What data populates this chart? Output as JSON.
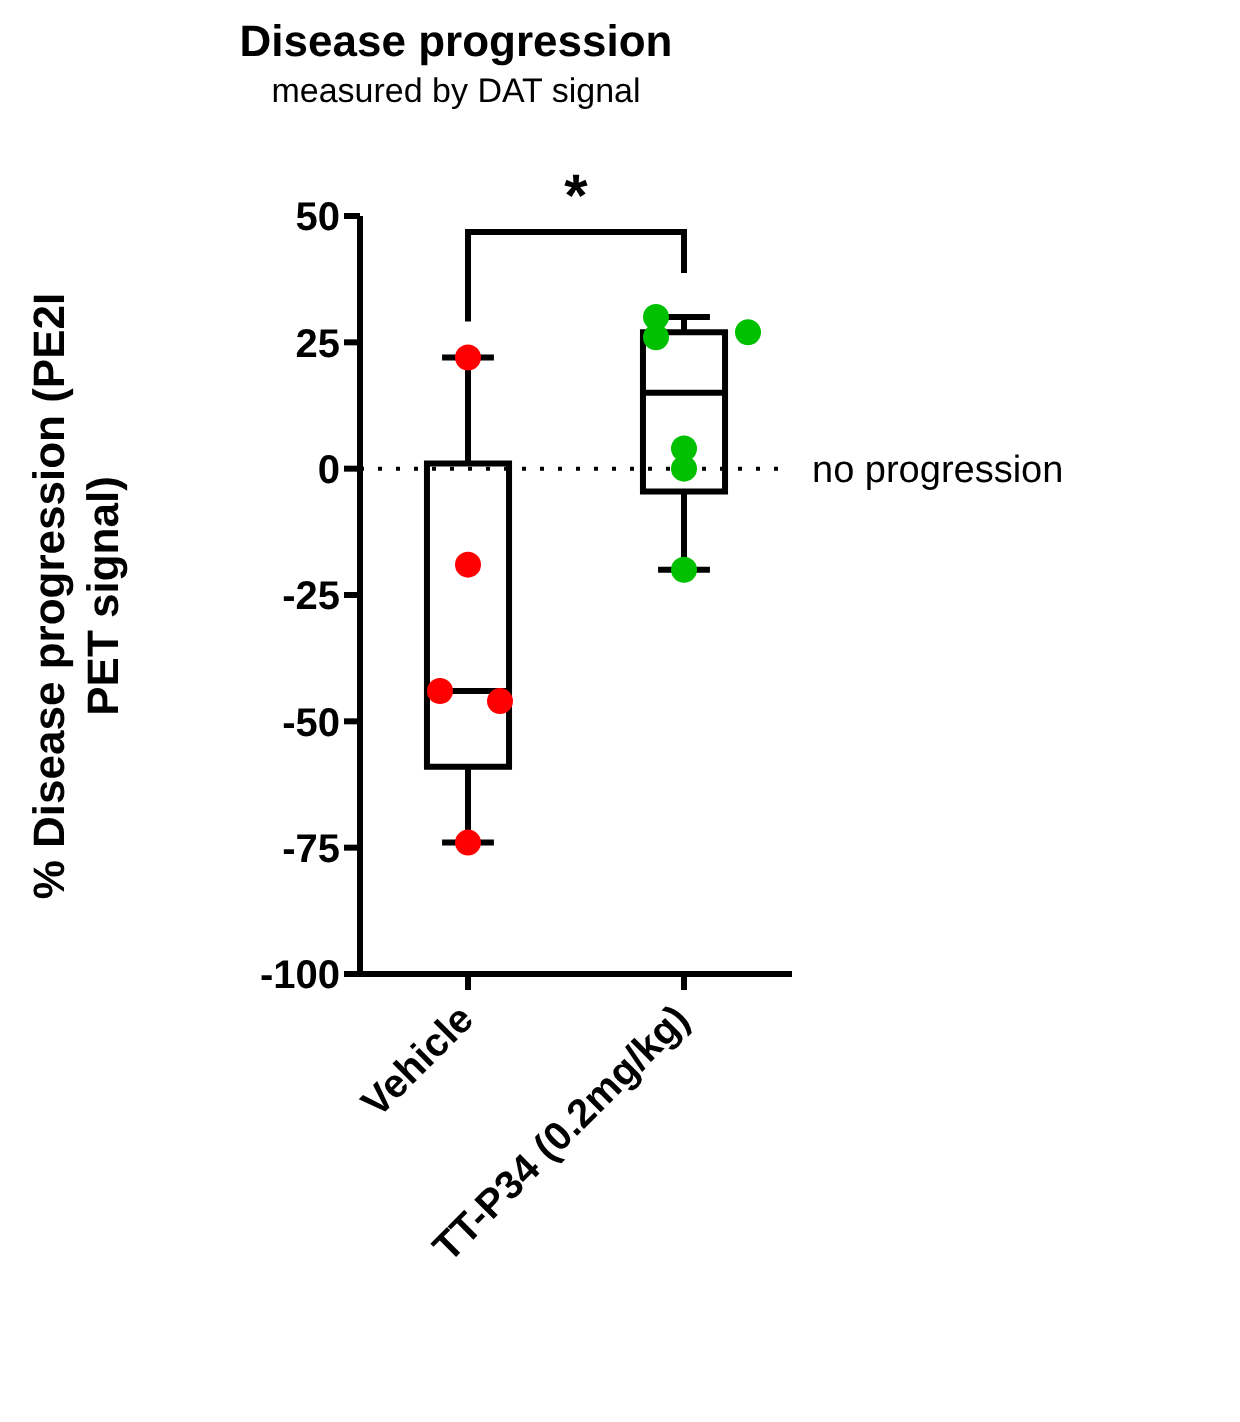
{
  "chart_data": {
    "type": "box",
    "title": "Disease progression",
    "subtitle": "measured by DAT signal",
    "ylabel": "% Disease progression (PE2I PET signal)",
    "categories": [
      "Vehicle",
      "TT-P34 (0.2mg/kg)"
    ],
    "boxes": [
      {
        "low": -74,
        "q1": -59,
        "median": -44,
        "q3": 1,
        "high": 22
      },
      {
        "low": -20,
        "q1": -4.5,
        "median": 15,
        "q3": 27,
        "high": 30
      }
    ],
    "series": [
      {
        "type": "scatter",
        "color": "#ff0000",
        "x": [
          "Vehicle",
          "Vehicle",
          "Vehicle",
          "Vehicle",
          "Vehicle"
        ],
        "values": [
          22,
          -19,
          -44,
          -46,
          -74
        ]
      },
      {
        "type": "scatter",
        "color": "#00c000",
        "x": [
          "TT-P34 (0.2mg/kg)",
          "TT-P34 (0.2mg/kg)",
          "TT-P34 (0.2mg/kg)",
          "TT-P34 (0.2mg/kg)",
          "TT-P34 (0.2mg/kg)",
          "TT-P34 (0.2mg/kg)"
        ],
        "values": [
          30,
          26,
          27,
          4,
          0,
          -20
        ]
      }
    ],
    "ylim": [
      -100,
      50
    ],
    "yticks": [
      -100,
      -75,
      -50,
      -25,
      0,
      25,
      50
    ],
    "ref_lines": [
      {
        "axis": "y",
        "value": 0,
        "label": "no progression",
        "line_style": "dotted"
      }
    ],
    "annotations": [
      "*"
    ],
    "marker": "circle",
    "grid": false
  }
}
